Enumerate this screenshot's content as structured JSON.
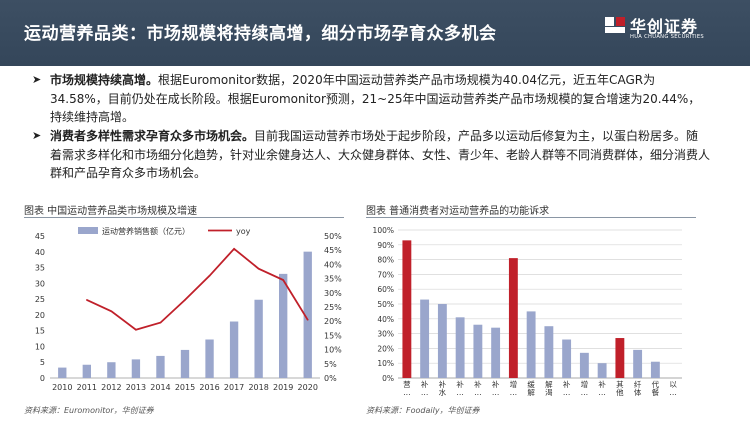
{
  "header": {
    "title": "运动营养品类：市场规模将持续高增，细分市场孕育众多机会",
    "logo_name": "华创证券",
    "logo_en": "HUA CHUANG SECURITIES"
  },
  "paragraphs": [
    {
      "bullet": "➤",
      "bold": "市场规模持续高增。",
      "text": "根据Euromonitor数据，2020年中国运动营养类产品市场规模为40.04亿元，近五年CAGR为34.58%，目前仍处在成长阶段。根据Euromonitor预测，21~25年中国运动营养类产品市场规模的复合增速为20.44%，持续维持高增。"
    },
    {
      "bullet": "➤",
      "bold": "消费者多样性需求孕育众多市场机会。",
      "text": "目前我国运动营养市场处于起步阶段，产品多以运动后修复为主，以蛋白粉居多。随着需求多样化和市场细分化趋势，针对业余健身达人、大众健身群体、女性、青少年、老龄人群等不同消费群体，细分消费人群和产品孕育众多市场机会。"
    }
  ],
  "figure_left": {
    "title": "图表 中国运动营养品类市场规模及增速",
    "source": "资料来源：Euromonitor，华创证券"
  },
  "figure_right": {
    "title": "图表 普通消费者对运动营养品的功能诉求",
    "source": "资料来源：Foodaily，华创证券"
  },
  "chart_data": [
    {
      "type": "bar",
      "categories": [
        "2010",
        "2011",
        "2012",
        "2013",
        "2014",
        "2015",
        "2016",
        "2017",
        "2018",
        "2019",
        "2020"
      ],
      "series": [
        {
          "name": "运动营养销售额（亿元）",
          "type": "bar",
          "axis": "left",
          "color": "#9aa6cc",
          "values": [
            3.3,
            4.2,
            5.0,
            5.9,
            7.0,
            8.9,
            12.2,
            17.9,
            24.8,
            33.0,
            40.04
          ]
        },
        {
          "name": "yoy",
          "type": "line",
          "axis": "right",
          "color": "#c0202a",
          "values": [
            null,
            27.5,
            23.5,
            17.0,
            19.5,
            27.5,
            36.0,
            45.5,
            38.5,
            34.5,
            20.5
          ]
        }
      ],
      "ylim_left": [
        0,
        45
      ],
      "yticks_left": [
        "0",
        "5",
        "10",
        "15",
        "20",
        "25",
        "30",
        "35",
        "40",
        "45"
      ],
      "ylim_right": [
        0,
        50
      ],
      "yticks_right": [
        "0%",
        "5%",
        "10%",
        "15%",
        "20%",
        "25%",
        "30%",
        "35%",
        "40%",
        "45%",
        "50%"
      ],
      "legend": "top",
      "grid": false
    },
    {
      "type": "bar",
      "categories": [
        "营…",
        "补…",
        "补水…",
        "补…",
        "补…",
        "补…",
        "增…",
        "缓解…",
        "解渴…",
        "补…",
        "增…",
        "补…",
        "其他",
        "纤体…",
        "代餐…",
        "以…"
      ],
      "values": [
        93,
        53,
        50,
        41,
        36,
        34,
        81,
        45,
        35,
        26,
        17,
        10,
        27,
        19,
        11,
        0
      ],
      "highlight": [
        0,
        6,
        12
      ],
      "bar_color": "#9aa6cc",
      "highlight_color": "#c0202a",
      "ylim": [
        0,
        100
      ],
      "yticks": [
        "0%",
        "10%",
        "20%",
        "30%",
        "40%",
        "50%",
        "60%",
        "70%",
        "80%",
        "90%",
        "100%"
      ],
      "grid": true
    }
  ]
}
